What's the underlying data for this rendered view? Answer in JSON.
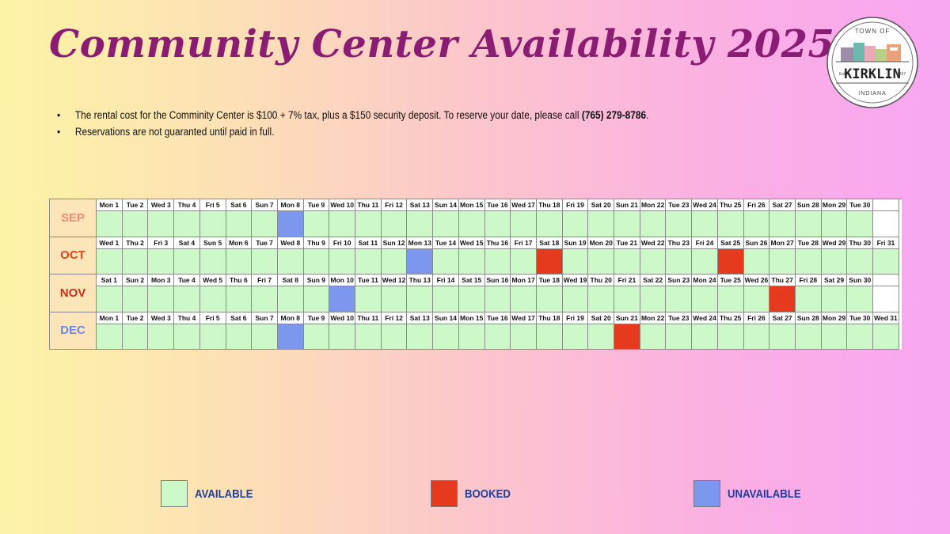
{
  "title": "Community Center Availability 2025",
  "logo": {
    "top_text": "TOWN OF",
    "name": "KIRKLIN",
    "est_label": "Estd.",
    "est_year": "1837",
    "bottom_text": "INDIANA"
  },
  "notes": {
    "line1_prefix": "The rental cost for the Comminity Center is $100 + 7% tax, plus a $150 security deposit. To reserve your date, please call ",
    "line1_phone": "(765) 279-8786",
    "line1_suffix": ".",
    "line2": "Reservations are not guaranted until paid in full."
  },
  "colors": {
    "available": "#cdf9c8",
    "booked": "#e53a1e",
    "unavailable": "#7e97ee"
  },
  "months": [
    {
      "label": "SEP",
      "color": "#ef8a78",
      "days": [
        "Mon 1",
        "Tue 2",
        "Wed 3",
        "Thu 4",
        "Fri 5",
        "Sat 6",
        "Sun 7",
        "Mon 8",
        "Tue 9",
        "Wed 10",
        "Thu 11",
        "Fri 12",
        "Sat 13",
        "Sun 14",
        "Mon 15",
        "Tue 16",
        "Wed 17",
        "Thu 18",
        "Fri 19",
        "Sat 20",
        "Sun 21",
        "Mon 22",
        "Tue 23",
        "Wed 24",
        "Thu 25",
        "Fri 26",
        "Sat 27",
        "Sun 28",
        "Mon 29",
        "Tue 30"
      ],
      "booked": [],
      "unavailable": [
        8
      ]
    },
    {
      "label": "OCT",
      "color": "#e0451e",
      "days": [
        "Wed 1",
        "Thu 2",
        "Fri 3",
        "Sat 4",
        "Sun 5",
        "Mon 6",
        "Tue 7",
        "Wed 8",
        "Thu 9",
        "Fri 10",
        "Sat 11",
        "Sun 12",
        "Mon 13",
        "Tue 14",
        "Wed 15",
        "Thu 16",
        "Fri 17",
        "Sat 18",
        "Sun 19",
        "Mon 20",
        "Tue 21",
        "Wed 22",
        "Thu 23",
        "Fri 24",
        "Sat 25",
        "Sun 26",
        "Mon 27",
        "Tue 28",
        "Wed 29",
        "Thu 30",
        "Fri 31"
      ],
      "booked": [
        18,
        25
      ],
      "unavailable": [
        13
      ]
    },
    {
      "label": "NOV",
      "color": "#c8301a",
      "days": [
        "Sat 1",
        "Sun 2",
        "Mon 3",
        "Tue 4",
        "Wed 5",
        "Thu 6",
        "Fri 7",
        "Sat 8",
        "Sun 9",
        "Mon 10",
        "Tue 11",
        "Wed 12",
        "Thu 13",
        "Fri 14",
        "Sat 15",
        "Sun 16",
        "Mon 17",
        "Tue 18",
        "Wed 19",
        "Thu 20",
        "Fri 21",
        "Sat 22",
        "Sun 23",
        "Mon 24",
        "Tue 25",
        "Wed 26",
        "Thu 27",
        "Fri 28",
        "Sat 29",
        "Sun 30"
      ],
      "booked": [
        27
      ],
      "unavailable": [
        10
      ]
    },
    {
      "label": "DEC",
      "color": "#6f86e6",
      "days": [
        "Mon 1",
        "Tue 2",
        "Wed 3",
        "Thu 4",
        "Fri 5",
        "Sat 6",
        "Sun 7",
        "Mon 8",
        "Tue 9",
        "Wed 10",
        "Thu 11",
        "Fri 12",
        "Sat 13",
        "Sun 14",
        "Mon 15",
        "Tue 16",
        "Wed 17",
        "Thu 18",
        "Fri 19",
        "Sat 20",
        "Sun 21",
        "Mon 22",
        "Tue 23",
        "Wed 24",
        "Thu 25",
        "Fri 26",
        "Sat 27",
        "Sun 28",
        "Mon 29",
        "Tue 30",
        "Wed 31"
      ],
      "booked": [
        21
      ],
      "unavailable": [
        8
      ]
    }
  ],
  "legend": {
    "available": "AVAILABLE",
    "booked": "BOOKED",
    "unavailable": "UNAVAILABLE"
  }
}
